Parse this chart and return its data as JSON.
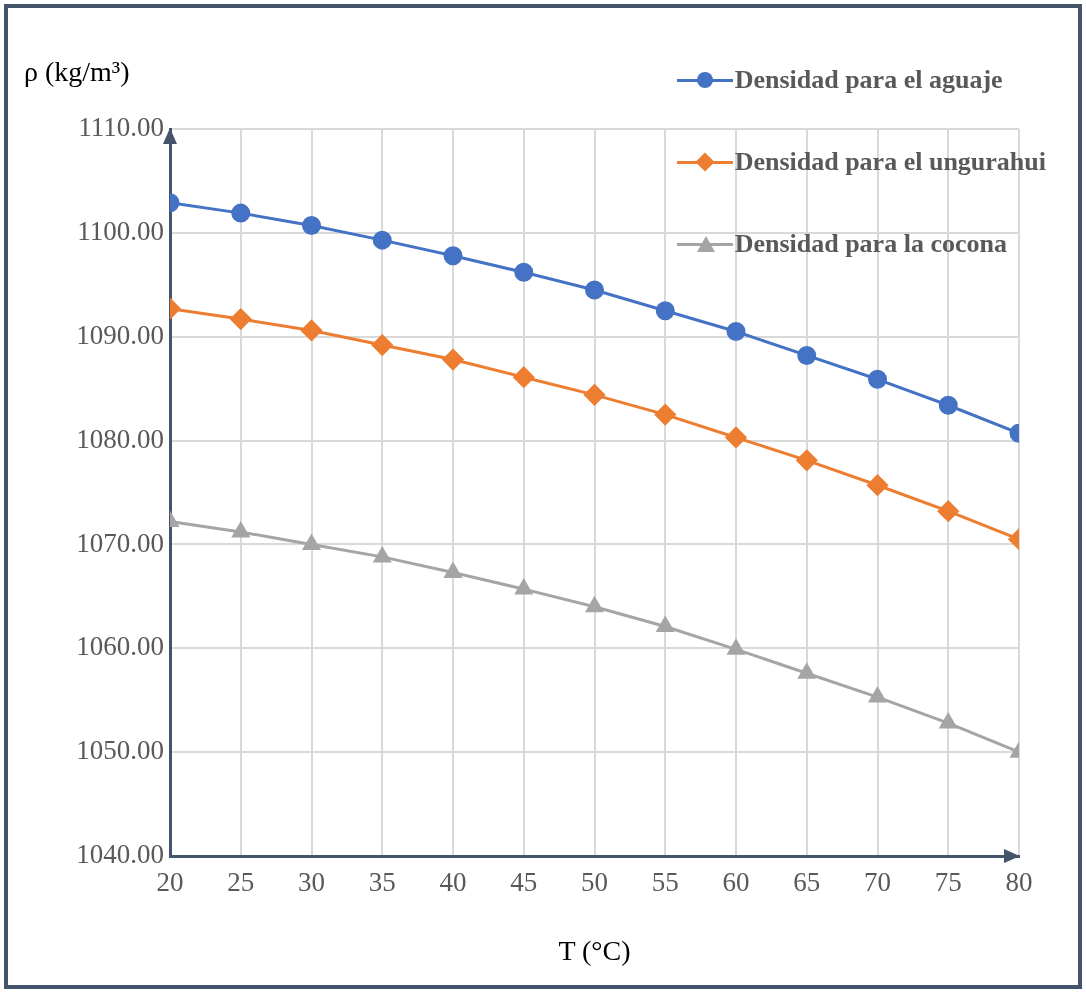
{
  "chart_data": {
    "type": "line",
    "xlabel": "T (°C)",
    "ylabel": "ρ (kg/m³)",
    "x": [
      20,
      25,
      30,
      35,
      40,
      45,
      50,
      55,
      60,
      65,
      70,
      75,
      80
    ],
    "xlim": [
      20,
      80
    ],
    "xticks": [
      20,
      25,
      30,
      35,
      40,
      45,
      50,
      55,
      60,
      65,
      70,
      75,
      80
    ],
    "ylim": [
      1040,
      1110
    ],
    "yticks": [
      {
        "value": 1040,
        "label": "1040.00"
      },
      {
        "value": 1050,
        "label": "1050.00"
      },
      {
        "value": 1060,
        "label": "1060.00"
      },
      {
        "value": 1070,
        "label": "1070.00"
      },
      {
        "value": 1080,
        "label": "1080.00"
      },
      {
        "value": 1090,
        "label": "1090.00"
      },
      {
        "value": 1100,
        "label": "1100.00"
      },
      {
        "value": 1110,
        "label": "1110.00"
      }
    ],
    "grid": true,
    "legend": "top right",
    "line_style": "solid",
    "series": [
      {
        "name": "Densidad para el aguaje",
        "color": "#4472c4",
        "marker": "circle",
        "values": [
          1102.9,
          1101.9,
          1100.7,
          1099.3,
          1097.8,
          1096.2,
          1094.5,
          1092.5,
          1090.5,
          1088.2,
          1085.9,
          1083.4,
          1080.7
        ]
      },
      {
        "name": "Densidad para el ungurahui",
        "color": "#ed7d31",
        "marker": "diamond",
        "values": [
          1092.7,
          1091.7,
          1090.6,
          1089.2,
          1087.8,
          1086.1,
          1084.4,
          1082.5,
          1080.3,
          1078.1,
          1075.7,
          1073.2,
          1070.5
        ]
      },
      {
        "name": "Densidad para la cocona",
        "color": "#a5a5a5",
        "marker": "triangle",
        "values": [
          1072.2,
          1071.2,
          1070.0,
          1068.8,
          1067.3,
          1065.7,
          1064.0,
          1062.1,
          1059.9,
          1057.6,
          1055.3,
          1052.8,
          1050.0
        ]
      }
    ]
  }
}
